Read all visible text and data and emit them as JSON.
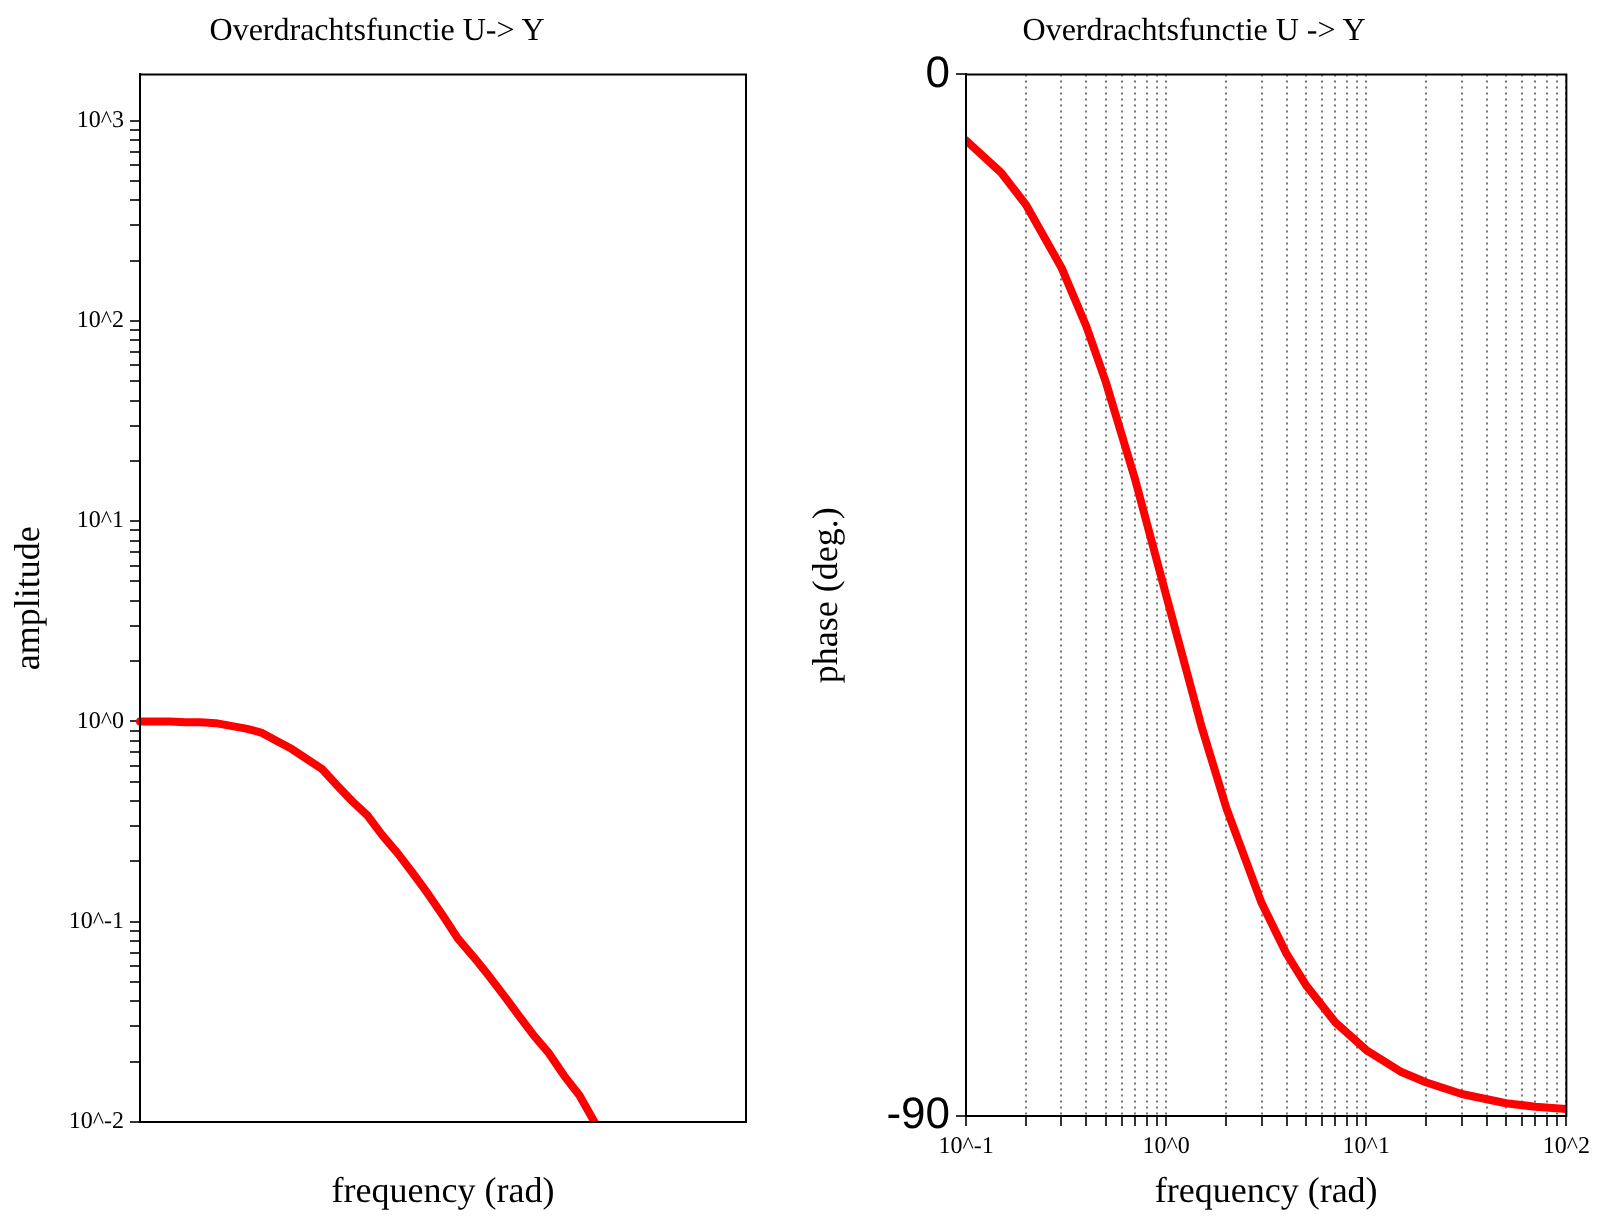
{
  "chart_data": [
    {
      "type": "line",
      "title": "Overdrachtsfunctie U-> Y",
      "xlabel": "frequency (rad)",
      "ylabel": "amplitude",
      "log": "y",
      "tick_labels": "y",
      "grid": false,
      "marker": "none",
      "line_style": "solid",
      "categories": [
        null,
        null,
        null,
        null,
        null,
        null,
        null,
        null,
        null,
        null,
        null,
        null,
        null,
        null,
        null,
        null,
        null,
        null,
        null,
        null,
        null,
        null,
        null,
        null,
        null,
        null,
        null,
        null,
        null,
        null,
        null,
        null,
        null,
        null,
        null,
        null,
        null,
        null,
        null,
        null,
        null
      ],
      "series": [
        {
          "color": "#ff0000",
          "values": [
            1.0,
            1.0,
            1.0,
            0.99,
            0.99,
            0.98,
            0.95,
            0.92,
            0.88,
            0.8,
            0.73,
            0.65,
            0.58,
            0.48,
            0.4,
            0.34,
            0.27,
            0.22,
            0.175,
            0.138,
            0.107,
            0.082,
            0.067,
            0.054,
            0.043,
            0.034,
            0.027,
            0.022,
            0.017,
            0.0136,
            0.01,
            null,
            null,
            null,
            null,
            null,
            null,
            null,
            null,
            null,
            null
          ]
        }
      ],
      "ylim": [
        0.01,
        1700
      ],
      "yticks": [
        {
          "value": 0.01,
          "label": "10^-2"
        },
        {
          "value": 0.02,
          "label": null
        },
        {
          "value": 0.03,
          "label": null
        },
        {
          "value": 0.04,
          "label": null
        },
        {
          "value": 0.05,
          "label": null
        },
        {
          "value": 0.06,
          "label": null
        },
        {
          "value": 0.07,
          "label": null
        },
        {
          "value": 0.08,
          "label": null
        },
        {
          "value": 0.09,
          "label": null
        },
        {
          "value": 0.1,
          "label": "10^-1"
        },
        {
          "value": 0.2,
          "label": null
        },
        {
          "value": 0.3,
          "label": null
        },
        {
          "value": 0.4,
          "label": null
        },
        {
          "value": 0.5,
          "label": null
        },
        {
          "value": 0.6,
          "label": null
        },
        {
          "value": 0.7,
          "label": null
        },
        {
          "value": 0.8,
          "label": null
        },
        {
          "value": 0.9,
          "label": null
        },
        {
          "value": 1,
          "label": "10^0"
        },
        {
          "value": 2,
          "label": null
        },
        {
          "value": 3,
          "label": null
        },
        {
          "value": 4,
          "label": null
        },
        {
          "value": 5,
          "label": null
        },
        {
          "value": 6,
          "label": null
        },
        {
          "value": 7,
          "label": null
        },
        {
          "value": 8,
          "label": null
        },
        {
          "value": 9,
          "label": null
        },
        {
          "value": 10,
          "label": "10^1"
        },
        {
          "value": 20,
          "label": null
        },
        {
          "value": 30,
          "label": null
        },
        {
          "value": 40,
          "label": null
        },
        {
          "value": 50,
          "label": null
        },
        {
          "value": 60,
          "label": null
        },
        {
          "value": 70,
          "label": null
        },
        {
          "value": 80,
          "label": null
        },
        {
          "value": 90,
          "label": null
        },
        {
          "value": 100,
          "label": "10^2"
        },
        {
          "value": 200,
          "label": null
        },
        {
          "value": 300,
          "label": null
        },
        {
          "value": 400,
          "label": null
        },
        {
          "value": 500,
          "label": null
        },
        {
          "value": 600,
          "label": null
        },
        {
          "value": 700,
          "label": null
        },
        {
          "value": 800,
          "label": null
        },
        {
          "value": 900,
          "label": null
        },
        {
          "value": 1000,
          "label": "10^3"
        }
      ]
    },
    {
      "type": "line",
      "title": "Overdrachtsfunctie U -> Y",
      "xlabel": "frequency (rad)",
      "ylabel": "phase (deg.)",
      "log": "x",
      "grid": "x",
      "marker": "none",
      "line_style": "solid",
      "x": [
        0.1,
        0.15,
        0.2,
        0.3,
        0.4,
        0.5,
        0.7,
        1,
        1.5,
        2,
        3,
        4,
        5,
        7,
        10,
        15,
        20,
        30,
        50,
        70,
        100
      ],
      "series": [
        {
          "color": "#ff0000",
          "values": [
            -5.7,
            -8.5,
            -11.3,
            -16.7,
            -21.8,
            -26.6,
            -35.0,
            -45.0,
            -56.3,
            -63.4,
            -71.6,
            -76.0,
            -78.7,
            -81.9,
            -84.3,
            -86.2,
            -87.1,
            -88.1,
            -88.9,
            -89.2,
            -89.4
          ]
        }
      ],
      "xlim": [
        0.1,
        100
      ],
      "xticks": [
        {
          "value": 0.1,
          "label": "10^-1"
        },
        {
          "value": 0.2,
          "label": null
        },
        {
          "value": 0.3,
          "label": null
        },
        {
          "value": 0.4,
          "label": null
        },
        {
          "value": 0.5,
          "label": null
        },
        {
          "value": 0.6,
          "label": null
        },
        {
          "value": 0.7,
          "label": null
        },
        {
          "value": 0.8,
          "label": null
        },
        {
          "value": 0.9,
          "label": null
        },
        {
          "value": 1,
          "label": "10^0"
        },
        {
          "value": 2,
          "label": null
        },
        {
          "value": 3,
          "label": null
        },
        {
          "value": 4,
          "label": null
        },
        {
          "value": 5,
          "label": null
        },
        {
          "value": 6,
          "label": null
        },
        {
          "value": 7,
          "label": null
        },
        {
          "value": 8,
          "label": null
        },
        {
          "value": 9,
          "label": null
        },
        {
          "value": 10,
          "label": "10^1"
        },
        {
          "value": 20,
          "label": null
        },
        {
          "value": 30,
          "label": null
        },
        {
          "value": 40,
          "label": null
        },
        {
          "value": 50,
          "label": null
        },
        {
          "value": 60,
          "label": null
        },
        {
          "value": 70,
          "label": null
        },
        {
          "value": 80,
          "label": null
        },
        {
          "value": 90,
          "label": null
        },
        {
          "value": 100,
          "label": "10^2"
        }
      ],
      "ylim": [
        -90,
        0
      ],
      "yticks": [
        -90,
        0
      ]
    }
  ]
}
